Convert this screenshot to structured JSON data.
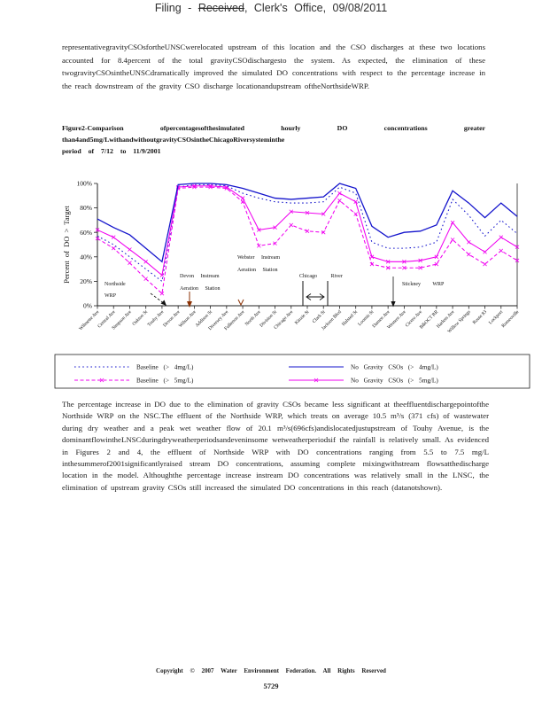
{
  "header": {
    "prefix": "Filing  - ",
    "received": "Received",
    "suffix": ",  Clerk's  Office,  09/08/2011"
  },
  "paragraph1": "representativegravityCSOsfortheUNSCwerelocated upstream of this location and the CSO discharges at these two locations accounted for 8.4percent of the total gravityCSOdischargesto the system.  As expected, the elimination of these twogravityCSOsintheUNSCdramatically improved the simulated DO concentrations with respect to the percentage increase in the reach downstream of the gravity CSO discharge locationandupstream oftheNorthsideWRP.",
  "figure_caption": {
    "line1": "Figure2-Comparison ofpercentagesofthesimulated hourly DO concentrations greater",
    "line2": "than4and5mg/LwithandwithoutgravityCSOsintheChicagoRiversysteminthe",
    "line3": "period of 7/12 to 11/9/2001"
  },
  "chart_data": {
    "type": "line",
    "title": "",
    "xlabel": "",
    "ylabel": "Percent of DO > Target",
    "ylim": [
      0,
      100
    ],
    "ytick_values": [
      0,
      20,
      40,
      60,
      80,
      100
    ],
    "ytick_labels": [
      "0%",
      "20%",
      "40%",
      "60%",
      "80%",
      "100%"
    ],
    "grid": false,
    "legend_position": "bottom-box",
    "categories": [
      "Wilmette Ave",
      "Central Ave",
      "Simpson Ave",
      "Oakton St",
      "Touhy Ave",
      "Devon Ave",
      "Wilson Ave",
      "Addison St",
      "Diversey Ave",
      "Fullerton Ave",
      "North Ave",
      "Division St",
      "Chicago Ave",
      "Kinzie St",
      "Clark St",
      "Jackson Blvd",
      "Halsted St",
      "Loomis St",
      "Damen Ave",
      "Western Ave",
      "Cicero Ave",
      "B&OCT RR",
      "Harlem Ave",
      "Willow Springs",
      "Route 83",
      "Lockport",
      "Romeoville"
    ],
    "series": [
      {
        "name": "Baseline (> 4mg/L)",
        "color": "#1414cc",
        "dash": "dotted",
        "marker": "none",
        "values": [
          57,
          50,
          40,
          30,
          20,
          97,
          99,
          99,
          98,
          92,
          88,
          85,
          84,
          84,
          85,
          97,
          92,
          52,
          47,
          47,
          48,
          52,
          87,
          74,
          57,
          70,
          59
        ]
      },
      {
        "name": "Baseline (> 5mg/L)",
        "color": "#f000f0",
        "dash": "dashed",
        "marker": "x",
        "values": [
          55,
          47,
          35,
          22,
          10,
          96,
          97,
          97,
          96,
          85,
          49,
          51,
          66,
          61,
          60,
          86,
          75,
          34,
          31,
          31,
          31,
          34,
          54,
          42,
          34,
          45,
          37
        ]
      },
      {
        "name": "No Gravity CSOs (> 4mg/L)",
        "color": "#1414cc",
        "dash": "solid",
        "marker": "none",
        "values": [
          71,
          64,
          58,
          47,
          36,
          99,
          100,
          100,
          99,
          96,
          92,
          88,
          87,
          88,
          89,
          100,
          96,
          65,
          56,
          60,
          61,
          66,
          94,
          84,
          72,
          84,
          73
        ]
      },
      {
        "name": "No Gravity CSOs (> 5mg/L)",
        "color": "#f000f0",
        "dash": "solid",
        "marker": "x",
        "values": [
          62,
          56,
          46,
          36,
          25,
          97,
          98,
          98,
          97,
          88,
          62,
          64,
          77,
          76,
          75,
          92,
          85,
          40,
          36,
          36,
          37,
          40,
          68,
          52,
          44,
          56,
          48
        ]
      }
    ],
    "annotations": [
      {
        "id": "northside",
        "lines": [
          "Northside",
          "WRP"
        ]
      },
      {
        "id": "devon",
        "lines": [
          "Devon Instream",
          "Aeration Station"
        ]
      },
      {
        "id": "webster",
        "lines": [
          "Webster Instream",
          "Aeration Station"
        ]
      },
      {
        "id": "chicago-river",
        "lines": [
          "Chicago River"
        ]
      },
      {
        "id": "stickney",
        "lines": [
          "Stickney WRP"
        ]
      }
    ]
  },
  "paragraph2": "The percentage increase in DO due to the elimination of gravity CSOs became less significant at theeffluentdischargepointofthe Northside WRP on the NSC.The effluent of the Northside WRP, which treats on average 10.5 m³/s (371 cfs) of wastewater during dry weather and a peak wet weather flow of 20.1 m³/s(696cfs)andislocatedjustupstream of Touhy Avenue, is the dominantflowintheLNSCduringdryweatherperiodsandeveninsome wetweatherperiodsif the rainfall is relatively small.  As evidenced in Figures 2 and 4, the effluent of Northside WRP with DO concentrations ranging from 5.5 to 7.5 mg/L inthesummerof2001significantlyraised stream DO concentrations, assuming complete mixingwithstream flowsatthedischarge location in the model.  Althoughthe percentage increase instream DO concentrations was relatively small in the LNSC, the elimination of upstream gravity CSOs still increased the simulated DO concentrations in this reach (datanotshown).",
  "footer": {
    "copyright": "Copyright © 2007 Water Environment Federation. All Rights Reserved",
    "page_number": "5729"
  }
}
